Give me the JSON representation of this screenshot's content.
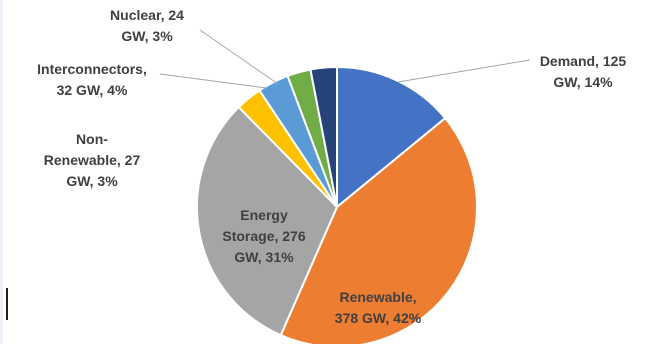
{
  "chart_data": {
    "type": "pie",
    "title": "",
    "slices": [
      {
        "name": "Demand",
        "value": 125,
        "value_label": "125 GW",
        "percent": 14,
        "color": "#4472c4"
      },
      {
        "name": "Renewable",
        "value": 378,
        "value_label": "378 GW",
        "percent": 42,
        "color": "#ed7d31"
      },
      {
        "name": "Energy Storage",
        "value": 276,
        "value_label": "276 GW",
        "percent": 31,
        "color": "#a5a5a5"
      },
      {
        "name": "Non-Renewable",
        "value": 27,
        "value_label": "27 GW",
        "percent": 3,
        "color": "#ffc000"
      },
      {
        "name": "Interconnectors",
        "value": 32,
        "value_label": "32 GW",
        "percent": 4,
        "color": "#5b9bd5"
      },
      {
        "name": "Nuclear",
        "value": 24,
        "value_label": "24 GW",
        "percent": 3,
        "color": "#70ad47"
      },
      {
        "name": "",
        "value": 27,
        "value_label": "",
        "percent": 3,
        "color": "#264478"
      }
    ],
    "labels": [
      {
        "lines": [
          "Demand, 125",
          "GW, 14%"
        ]
      },
      {
        "lines": [
          "Renewable,",
          "378 GW, 42%"
        ]
      },
      {
        "lines": [
          "Energy",
          "Storage, 276",
          "GW, 31%"
        ]
      },
      {
        "lines": [
          "Non-",
          "Renewable, 27",
          "GW, 3%"
        ]
      },
      {
        "lines": [
          "Interconnectors,",
          "32 GW, 4%"
        ]
      },
      {
        "lines": [
          "Nuclear, 24",
          "GW, 3%"
        ]
      }
    ],
    "start_angle_deg": 0,
    "direction": "clockwise",
    "legend": "none"
  }
}
